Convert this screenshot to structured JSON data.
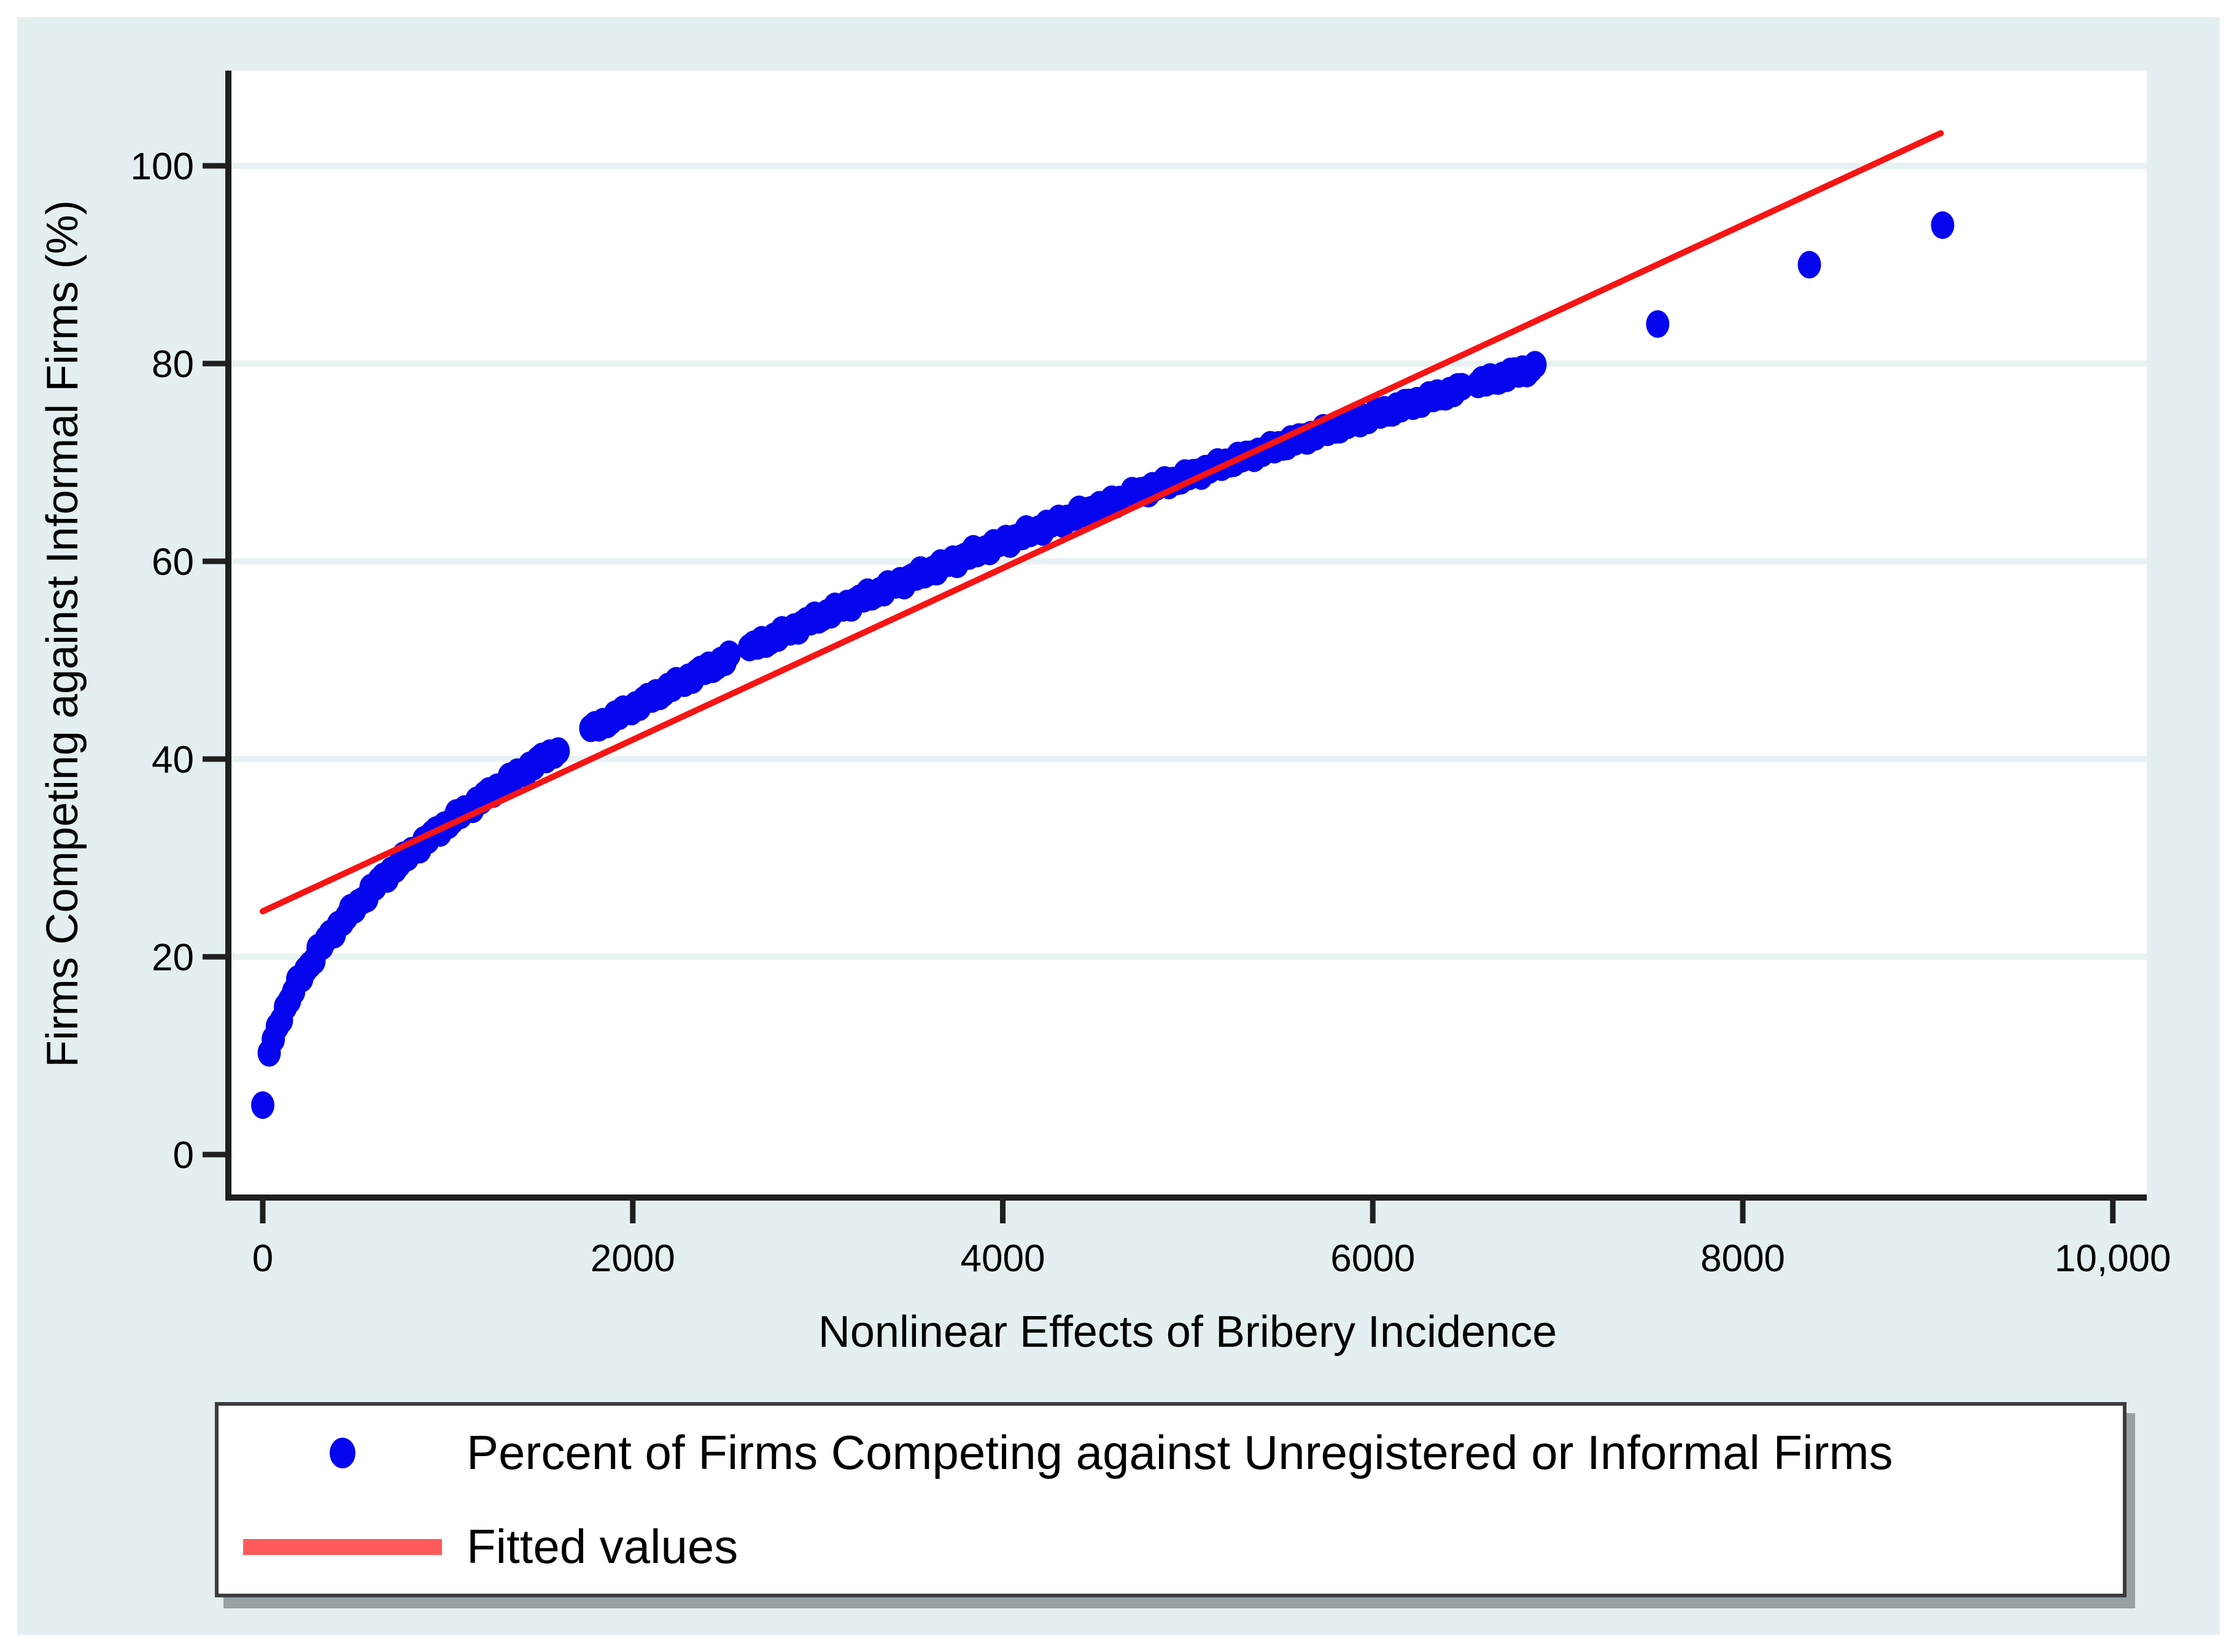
{
  "figure": {
    "panel_background": "#e4eff1",
    "page_background": "#ffffff"
  },
  "chart_data": {
    "type": "scatter",
    "title": "",
    "xlabel": "Nonlinear Effects of Bribery Incidence",
    "ylabel": "Firms Competing against Informal Firms (%)",
    "xlim": [
      0,
      10180
    ],
    "ylim": [
      -4.3,
      107.5
    ],
    "grid": "horizontal-only",
    "legend_position": "bottom",
    "x_tick_values": [
      0,
      2000,
      4000,
      6000,
      8000,
      10000
    ],
    "x_tick_labels": [
      "0",
      "2000",
      "4000",
      "6000",
      "8000",
      "10,000"
    ],
    "y_tick_values": [
      0,
      20,
      40,
      60,
      80,
      100
    ],
    "y_tick_labels": [
      "0",
      "20",
      "40",
      "60",
      "80",
      "100"
    ],
    "colors": {
      "scatter": "#0505ee",
      "fit_line": "#f71414",
      "legend_fit_swatch": "#ff5a5a",
      "gridline": "#e8f2f3",
      "axis": "#1f1f1f",
      "plot_background": "#ffffff"
    },
    "series": [
      {
        "name": "Percent of Firms Competing against Unregistered or Informal Firms",
        "type": "scatter",
        "color": "#0505ee",
        "isolated_points": [
          [
            0,
            5
          ]
        ],
        "band_anchor_points": [
          [
            35,
            10.3
          ],
          [
            100,
            14.0
          ],
          [
            200,
            17.7
          ],
          [
            300,
            20.6
          ],
          [
            400,
            23.0
          ],
          [
            600,
            27.0
          ],
          [
            800,
            30.5
          ],
          [
            1000,
            33.5
          ],
          [
            1200,
            36.2
          ],
          [
            1400,
            38.7
          ],
          [
            1600,
            41.0
          ],
          [
            1800,
            43.2
          ],
          [
            2000,
            45.2
          ],
          [
            2200,
            47.2
          ],
          [
            2400,
            49.1
          ],
          [
            2600,
            50.9
          ],
          [
            2800,
            52.6
          ],
          [
            3000,
            54.3
          ],
          [
            3200,
            55.9
          ],
          [
            3400,
            57.5
          ],
          [
            3600,
            59.0
          ],
          [
            3800,
            60.5
          ],
          [
            4000,
            61.9
          ],
          [
            4200,
            63.3
          ],
          [
            4400,
            64.7
          ],
          [
            4600,
            66.0
          ],
          [
            4800,
            67.4
          ],
          [
            5000,
            68.6
          ],
          [
            5200,
            69.9
          ],
          [
            5400,
            71.1
          ],
          [
            5600,
            72.3
          ],
          [
            5800,
            73.5
          ],
          [
            6000,
            74.7
          ],
          [
            6200,
            75.9
          ],
          [
            6400,
            77.0
          ],
          [
            6600,
            78.1
          ],
          [
            6800,
            79.2
          ],
          [
            6890,
            79.7
          ]
        ],
        "band_gaps_x": [
          [
            1615,
            1755
          ],
          [
            2538,
            2618
          ],
          [
            6500,
            6556
          ]
        ],
        "outlier_points": [
          [
            7540,
            84
          ],
          [
            8360,
            90
          ],
          [
            9080,
            94
          ]
        ]
      },
      {
        "name": "Fitted values",
        "type": "line",
        "color": "#f71414",
        "points": [
          [
            0,
            24.6
          ],
          [
            9070,
            103.3
          ]
        ]
      }
    ],
    "legend": {
      "entries": [
        {
          "marker": "dot",
          "color": "#0505ee",
          "label": "Percent of Firms Competing against Unregistered or Informal Firms"
        },
        {
          "marker": "line",
          "color": "#ff5a5a",
          "label": "Fitted values"
        }
      ]
    }
  }
}
